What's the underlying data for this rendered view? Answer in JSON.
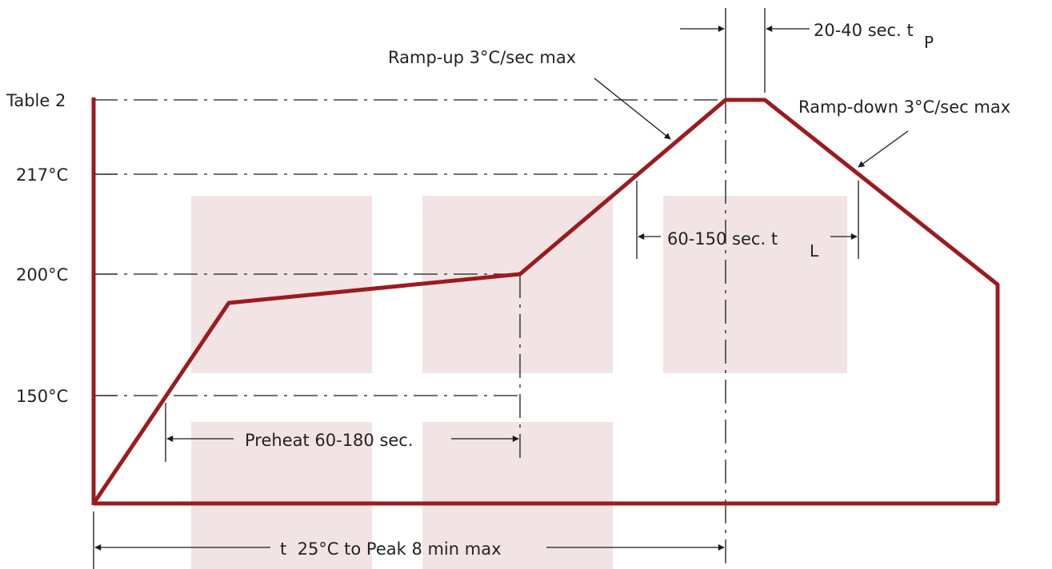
{
  "y_labels": {
    "table2": "Table 2",
    "t217": "217°C",
    "t200": "200°C",
    "t150": "150°C"
  },
  "annotations": {
    "tp": {
      "text": "20-40 sec. t",
      "sub": "P"
    },
    "ramp_up": "Ramp-up 3°C/sec max",
    "ramp_down": "Ramp-down 3°C/sec max",
    "tl": {
      "text": "60-150 sec. t",
      "sub": "L"
    },
    "preheat": "Preheat 60-180 sec.",
    "total": "t  25°C to Peak 8 min max"
  },
  "colors": {
    "profile": "#9b1b1f",
    "guide": "#1a1a1a",
    "shade": "#f2e4e4"
  }
}
